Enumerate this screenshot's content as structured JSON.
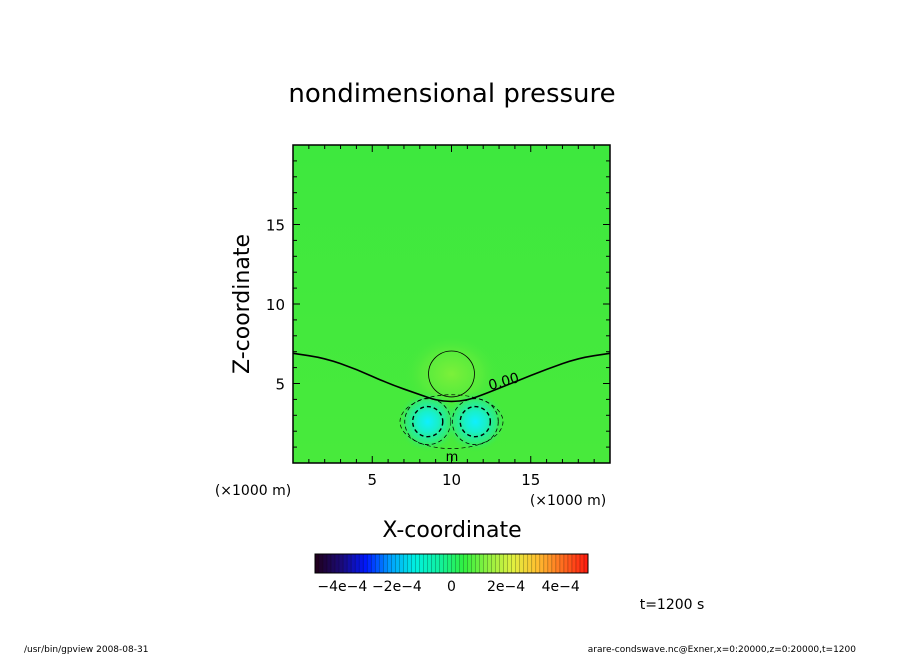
{
  "chart_data": {
    "type": "heatmap",
    "title": "nondimensional pressure",
    "xlabel": "X-coordinate",
    "ylabel": "Z-coordinate",
    "x_unit": "(×1000 m)",
    "z_unit": "(×1000 m)",
    "xlim": [
      0,
      20
    ],
    "zlim": [
      0,
      20
    ],
    "x_ticks": [
      "5",
      "10",
      "15"
    ],
    "z_ticks": [
      "5",
      "10",
      "15"
    ],
    "contour_label": "0.00",
    "contour_min_label": "m",
    "colorbar": {
      "range": [
        -0.0005,
        0.0005
      ],
      "tick_labels": [
        "−4e−4",
        "−2e−4",
        "0",
        "2e−4",
        "4e−4"
      ],
      "colors": [
        "#200020",
        "#1a0a7a",
        "#0018ff",
        "#00a0ff",
        "#00f0e0",
        "#10f0a0",
        "#30f040",
        "#90f040",
        "#e0f040",
        "#ffc030",
        "#ff7020",
        "#ff2010"
      ]
    },
    "field": {
      "background": "#3ee83e",
      "features": [
        {
          "kind": "high",
          "x": 10.0,
          "z": 5.6,
          "amplitude": 4e-05,
          "color": "#6ff03a"
        },
        {
          "kind": "low",
          "x": 8.5,
          "z": 2.6,
          "amplitude": -0.00015,
          "color": "#16f0d8"
        },
        {
          "kind": "low",
          "x": 11.5,
          "z": 2.6,
          "amplitude": -0.00015,
          "color": "#16f0d8"
        }
      ],
      "zero_contour": [
        [
          0,
          6.9
        ],
        [
          2,
          6.6
        ],
        [
          4,
          5.9
        ],
        [
          6,
          5.0
        ],
        [
          8,
          4.3
        ],
        [
          9,
          3.95
        ],
        [
          10,
          3.85
        ],
        [
          11,
          3.95
        ],
        [
          12,
          4.3
        ],
        [
          14,
          5.1
        ],
        [
          16,
          5.9
        ],
        [
          18,
          6.6
        ],
        [
          20,
          6.9
        ]
      ]
    },
    "time_label": "t=1200 s"
  },
  "footer": {
    "left": "/usr/bin/gpview   2008-08-31",
    "right": "arare-condswave.nc@Exner,x=0:20000,z=0:20000,t=1200"
  }
}
